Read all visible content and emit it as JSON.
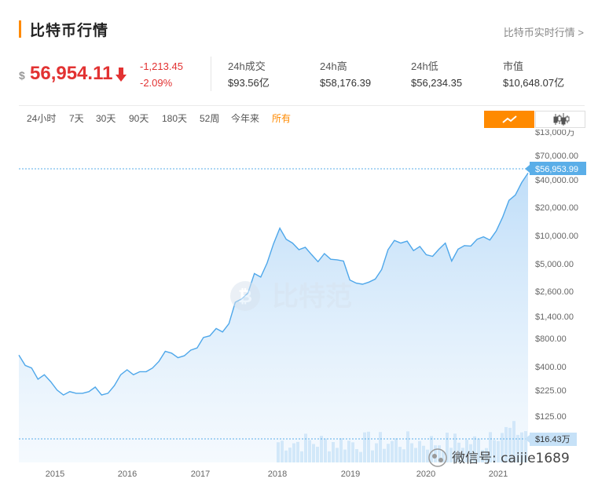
{
  "header": {
    "title": "比特币行情",
    "more_link": "比特币实时行情 >"
  },
  "quote": {
    "currency_symbol": "$",
    "price": "56,954.11",
    "change_abs": "-1,213.45",
    "change_pct": "-2.09%",
    "trend": "down",
    "stats": [
      {
        "label": "24h成交",
        "value": "$93.56亿"
      },
      {
        "label": "24h高",
        "value": "$58,176.39"
      },
      {
        "label": "24h低",
        "value": "$56,234.35"
      },
      {
        "label": "市值",
        "value": "$10,648.07亿"
      }
    ]
  },
  "range_tabs": [
    "24小时",
    "7天",
    "30天",
    "90天",
    "180天",
    "52周",
    "今年来",
    "所有"
  ],
  "active_tab": "所有",
  "view_toggle": {
    "active": "line",
    "options": [
      "line-chart-icon",
      "candlestick-icon"
    ]
  },
  "colors": {
    "accent": "#ff8a00",
    "down": "#e23232",
    "line": "#4ea7ea",
    "fill": "#cfe5fa",
    "badge": "#5aaee8"
  },
  "watermark": "比特范",
  "overlay_caption": "微信号: caijie1689",
  "chart_data": {
    "type": "area",
    "scale": "log",
    "x_ticks": [
      "2015",
      "2016",
      "2017",
      "2018",
      "2019",
      "2020",
      "2021"
    ],
    "y_ticks": [
      "$13,000万",
      "$70,000.00",
      "$40,000.00",
      "$20,000.00",
      "$10,000.00",
      "$5,000.00",
      "$2,600.00",
      "$1,400.00",
      "$800.00",
      "$400.00",
      "$225.00",
      "$125.00",
      "$16.43万"
    ],
    "current_price_label": "$56,953.99",
    "current_volume_label": "$16.43万",
    "x": [
      "2014-07",
      "2014-08",
      "2014-09",
      "2014-10",
      "2014-11",
      "2014-12",
      "2015-01",
      "2015-02",
      "2015-03",
      "2015-04",
      "2015-05",
      "2015-06",
      "2015-07",
      "2015-08",
      "2015-09",
      "2015-10",
      "2015-11",
      "2015-12",
      "2016-01",
      "2016-02",
      "2016-03",
      "2016-04",
      "2016-05",
      "2016-06",
      "2016-07",
      "2016-08",
      "2016-09",
      "2016-10",
      "2016-11",
      "2016-12",
      "2017-01",
      "2017-02",
      "2017-03",
      "2017-04",
      "2017-05",
      "2017-06",
      "2017-07",
      "2017-08",
      "2017-09",
      "2017-10",
      "2017-11",
      "2017-12",
      "2018-01",
      "2018-02",
      "2018-03",
      "2018-04",
      "2018-05",
      "2018-06",
      "2018-07",
      "2018-08",
      "2018-09",
      "2018-10",
      "2018-11",
      "2018-12",
      "2019-01",
      "2019-02",
      "2019-03",
      "2019-04",
      "2019-05",
      "2019-06",
      "2019-07",
      "2019-08",
      "2019-09",
      "2019-10",
      "2019-11",
      "2019-12",
      "2020-01",
      "2020-02",
      "2020-03",
      "2020-04",
      "2020-05",
      "2020-06",
      "2020-07",
      "2020-08",
      "2020-09",
      "2020-10",
      "2020-11",
      "2020-12",
      "2021-01",
      "2021-02",
      "2021-03"
    ],
    "series": [
      {
        "values": [
          620,
          480,
          450,
          340,
          380,
          320,
          260,
          230,
          250,
          240,
          240,
          250,
          280,
          230,
          240,
          290,
          380,
          430,
          380,
          410,
          410,
          450,
          530,
          680,
          650,
          580,
          610,
          700,
          740,
          960,
          1000,
          1200,
          1100,
          1350,
          2300,
          2500,
          2900,
          4700,
          4300,
          6100,
          9800,
          14500,
          11000,
          10000,
          8500,
          9000,
          7500,
          6300,
          7700,
          6700,
          6600,
          6400,
          4000,
          3700,
          3600,
          3800,
          4100,
          5200,
          8500,
          10700,
          10000,
          10500,
          8300,
          9200,
          7500,
          7200,
          8600,
          10000,
          6400,
          8600,
          9400,
          9300,
          11000,
          11700,
          10800,
          13500,
          19000,
          28900,
          33000,
          45000,
          56954
        ]
      }
    ]
  }
}
